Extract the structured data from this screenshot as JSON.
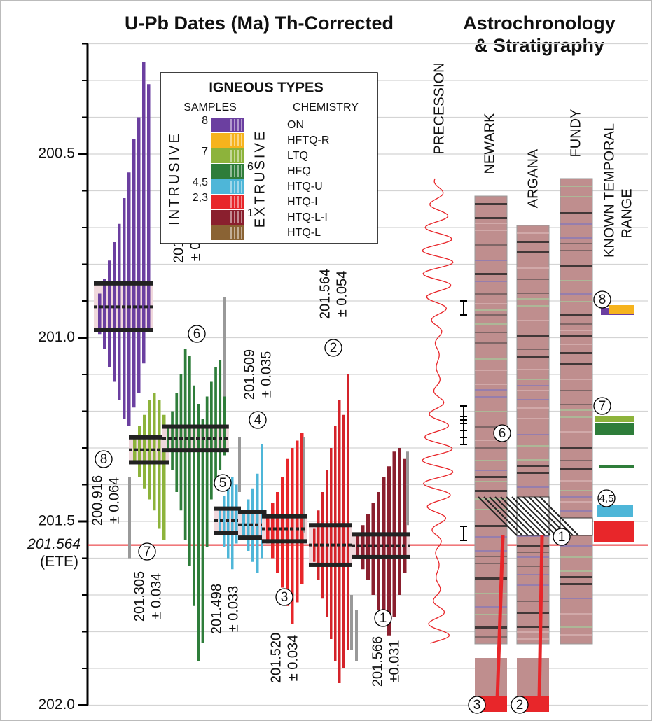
{
  "header": {
    "title_left": "U-Pb Dates (Ma) Th-Corrected",
    "title_right": [
      "Astrochronology",
      "& Stratigraphy"
    ]
  },
  "chart_data": {
    "type": "range",
    "ylim": [
      200.2,
      202.0
    ],
    "yticks": [
      {
        "value": 200.5,
        "label": "200.5"
      },
      {
        "value": 201,
        "label": "201.0"
      },
      201.5,
      {
        "value": 202,
        "label": "202.0"
      }
    ],
    "minor_yticks": [
      200.2,
      200.3,
      200.4,
      200.6,
      200.7,
      200.8,
      200.9,
      201.1,
      201.2,
      201.3,
      201.4,
      201.6,
      201.7,
      201.8,
      201.9
    ],
    "grid": true,
    "ete": {
      "value": 201.564,
      "label": "201.564",
      "note": "(ETE)",
      "color": "#e8262a"
    },
    "legend": {
      "title": "IGNEOUS  TYPES",
      "samples_heading": "SAMPLES",
      "chemistry_heading": "CHEMISTRY",
      "intrusive": "INTRUSIVE",
      "extrusive": "EXTRUSIVE",
      "entries": [
        {
          "name": "ON",
          "color": "#6b3fa0",
          "samples": "8",
          "side": "left"
        },
        {
          "name": "HFTQ-R",
          "color": "#f6b31d",
          "samples": null,
          "side": "left"
        },
        {
          "name": "LTQ",
          "color": "#8db33b",
          "samples": "7",
          "side": "left"
        },
        {
          "name": "HFQ",
          "color": "#2e7d3a",
          "samples": "6",
          "side": "right"
        },
        {
          "name": "HTQ-U",
          "color": "#4eb6d8",
          "samples": "4,5",
          "side": "left"
        },
        {
          "name": "HTQ-I",
          "color": "#e8262a",
          "samples": "2,3",
          "side": "left"
        },
        {
          "name": "HTQ-L-I",
          "color": "#8a1f2e",
          "samples": "1",
          "side": "right"
        },
        {
          "name": "HTQ-L",
          "color": "#8a6334",
          "samples": null,
          "side": "left"
        }
      ]
    },
    "samples": [
      {
        "id": "8",
        "color": "#6b3fa0",
        "date": 200.916,
        "date_label": "200.916",
        "error": 0.064,
        "error_label": "± 0.064",
        "grains": [
          [
            200.88,
            200.99
          ],
          [
            200.84,
            201.03
          ],
          [
            200.79,
            201.08
          ],
          [
            200.74,
            201.12
          ],
          [
            200.69,
            201.17
          ],
          [
            200.62,
            201.22
          ],
          [
            200.55,
            201.24
          ],
          [
            200.46,
            201.19
          ],
          [
            200.4,
            201.15
          ],
          [
            200.25,
            201.07
          ],
          [
            200.31,
            200.98
          ]
        ],
        "excluded": []
      },
      {
        "id": "7",
        "color": "#8db33b",
        "date": 201.305,
        "date_label": "201.305",
        "error": 0.034,
        "error_label": "± 0.034",
        "grains": [
          [
            201.27,
            201.34
          ],
          [
            201.24,
            201.38
          ],
          [
            201.21,
            201.41
          ],
          [
            201.17,
            201.44
          ],
          [
            201.15,
            201.47
          ],
          [
            201.17,
            201.52
          ],
          [
            201.21,
            201.55
          ]
        ],
        "excluded": [
          [
            201.38,
            201.6
          ]
        ]
      },
      {
        "id": "6",
        "color": "#2e7d3a",
        "date": 201.274,
        "date_label": "201.274",
        "error": 0.032,
        "error_label": "± 0.032",
        "grains": [
          [
            201.24,
            201.31
          ],
          [
            201.2,
            201.36
          ],
          [
            201.15,
            201.42
          ],
          [
            201.1,
            201.47
          ],
          [
            201.03,
            201.55
          ],
          [
            201.05,
            201.62
          ],
          [
            201.13,
            201.73
          ],
          [
            201.18,
            201.88
          ],
          [
            201.22,
            201.83
          ],
          [
            201.16,
            201.57
          ],
          [
            201.12,
            201.44
          ],
          [
            201.08,
            201.4
          ],
          [
            201.06,
            201.36
          ],
          [
            201.04,
            201.32
          ]
        ],
        "excluded": [
          [
            200.89,
            201.16
          ]
        ]
      },
      {
        "id": "5",
        "color": "#4eb6d8",
        "date": 201.498,
        "date_label": "201.498",
        "error": 0.033,
        "error_label": "± 0.033",
        "grains": [
          [
            201.46,
            201.53
          ],
          [
            201.43,
            201.57
          ],
          [
            201.4,
            201.6
          ],
          [
            201.38,
            201.63
          ],
          [
            201.4,
            201.56
          ]
        ],
        "excluded": [
          [
            201.27,
            201.42
          ]
        ]
      },
      {
        "id": "4",
        "color": "#4eb6d8",
        "date": 201.509,
        "date_label": "201.509",
        "error": 0.035,
        "error_label": "± 0.035",
        "grains": [
          [
            201.47,
            201.55
          ],
          [
            201.44,
            201.58
          ],
          [
            201.41,
            201.61
          ],
          [
            201.37,
            201.64
          ],
          [
            201.29,
            201.6
          ]
        ],
        "excluded": []
      },
      {
        "id": "3",
        "color": "#e8262a",
        "date": 201.52,
        "date_label": "201.520",
        "error": 0.034,
        "error_label": "± 0.034",
        "grains": [
          [
            201.48,
            201.56
          ],
          [
            201.45,
            201.6
          ],
          [
            201.42,
            201.64
          ],
          [
            201.38,
            201.68
          ],
          [
            201.33,
            201.73
          ],
          [
            201.3,
            201.78
          ],
          [
            201.28,
            201.72
          ],
          [
            201.26,
            201.67
          ]
        ],
        "excluded": [
          [
            201.27,
            201.53
          ]
        ]
      },
      {
        "id": "2",
        "color": "#d4232a",
        "date": 201.564,
        "date_label": "201.564",
        "error": 0.054,
        "error_label": "± 0.054",
        "grains": [
          [
            201.52,
            201.61
          ],
          [
            201.47,
            201.66
          ],
          [
            201.42,
            201.71
          ],
          [
            201.36,
            201.76
          ],
          [
            201.3,
            201.82
          ],
          [
            201.24,
            201.88
          ],
          [
            201.17,
            201.94
          ],
          [
            201.21,
            201.9
          ],
          [
            201.1,
            201.85
          ]
        ],
        "excluded": []
      },
      {
        "id": "1",
        "color": "#8a1f2e",
        "date": 201.566,
        "date_label": "201.566",
        "error": 0.031,
        "error_label": "±0.031",
        "grains": [
          [
            201.54,
            201.6
          ],
          [
            201.51,
            201.63
          ],
          [
            201.48,
            201.66
          ],
          [
            201.45,
            201.7
          ],
          [
            201.42,
            201.74
          ],
          [
            201.38,
            201.78
          ],
          [
            201.35,
            201.81
          ],
          [
            201.31,
            201.76
          ],
          [
            201.3,
            201.7
          ],
          [
            201.33,
            201.64
          ]
        ],
        "excluded": [
          [
            201.7,
            201.85
          ],
          [
            201.74,
            201.88
          ],
          [
            201.31,
            201.51
          ]
        ]
      }
    ]
  },
  "stratigraphy": {
    "labels": [
      "PRECESSION",
      "NEWARK",
      "ARGANA",
      "FUNDY",
      "KNOWN TEMPORAL",
      "RANGE"
    ],
    "markers": [
      "8",
      "7",
      "6",
      "4,5",
      "1",
      "3",
      "2"
    ]
  }
}
